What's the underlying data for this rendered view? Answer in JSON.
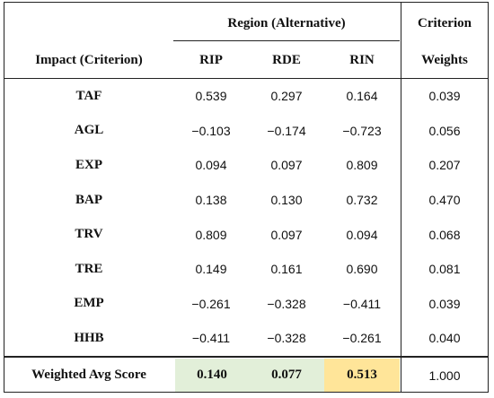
{
  "header": {
    "region_group": "Region (Alternative)",
    "criterion_line1": "Criterion",
    "criterion_line2": "Weights",
    "impact_label": "Impact (Criterion)",
    "alternatives": [
      "RIP",
      "RDE",
      "RIN"
    ]
  },
  "rows": [
    {
      "label": "TAF",
      "values": [
        "0.539",
        "0.297",
        "0.164"
      ],
      "weight": "0.039"
    },
    {
      "label": "AGL",
      "values": [
        "−0.103",
        "−0.174",
        "−0.723"
      ],
      "weight": "0.056"
    },
    {
      "label": "EXP",
      "values": [
        "0.094",
        "0.097",
        "0.809"
      ],
      "weight": "0.207"
    },
    {
      "label": "BAP",
      "values": [
        "0.138",
        "0.130",
        "0.732"
      ],
      "weight": "0.470"
    },
    {
      "label": "TRV",
      "values": [
        "0.809",
        "0.097",
        "0.094"
      ],
      "weight": "0.068"
    },
    {
      "label": "TRE",
      "values": [
        "0.149",
        "0.161",
        "0.690"
      ],
      "weight": "0.081"
    },
    {
      "label": "EMP",
      "values": [
        "−0.261",
        "−0.328",
        "−0.411"
      ],
      "weight": "0.039"
    },
    {
      "label": "HHB",
      "values": [
        "−0.411",
        "−0.328",
        "−0.261"
      ],
      "weight": "0.040"
    }
  ],
  "summary": {
    "label": "Weighted Avg Score",
    "values": [
      "0.140",
      "0.077",
      "0.513"
    ],
    "weight": "1.000",
    "colors": {
      "green": "#e2efd9",
      "yellow": "#ffe599"
    }
  }
}
